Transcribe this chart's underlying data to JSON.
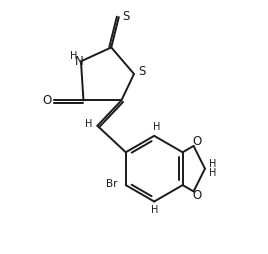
{
  "bg_color": "#ffffff",
  "line_color": "#1a1a1a",
  "line_width": 1.4,
  "font_size": 7.5,
  "figsize": [
    2.68,
    2.54
  ],
  "dpi": 100,
  "xlim": [
    0,
    10
  ],
  "ylim": [
    0,
    10
  ]
}
